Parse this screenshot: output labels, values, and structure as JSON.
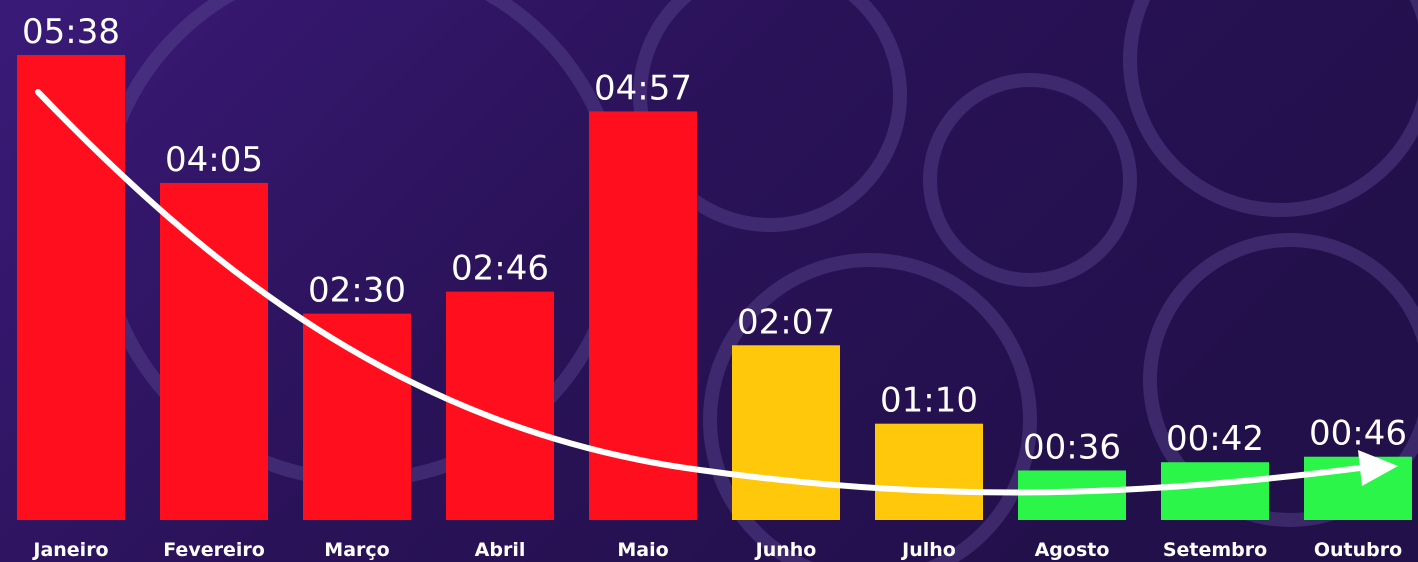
{
  "chart_data": {
    "type": "bar",
    "categories": [
      "Janeiro",
      "Fevereiro",
      "Março",
      "Abril",
      "Maio",
      "Junho",
      "Julho",
      "Agosto",
      "Setembro",
      "Outubro"
    ],
    "values": [
      338,
      245,
      150,
      166,
      297,
      127,
      70,
      36,
      42,
      46
    ],
    "value_labels": [
      "05:38",
      "04:05",
      "02:30",
      "02:46",
      "04:57",
      "02:07",
      "01:10",
      "00:36",
      "00:42",
      "00:46"
    ],
    "colors": [
      "#ff0f1e",
      "#ff0f1e",
      "#ff0f1e",
      "#ff0f1e",
      "#ff0f1e",
      "#ffc80a",
      "#ffc80a",
      "#2cf54a",
      "#2cf54a",
      "#2cf54a"
    ]
  }
}
